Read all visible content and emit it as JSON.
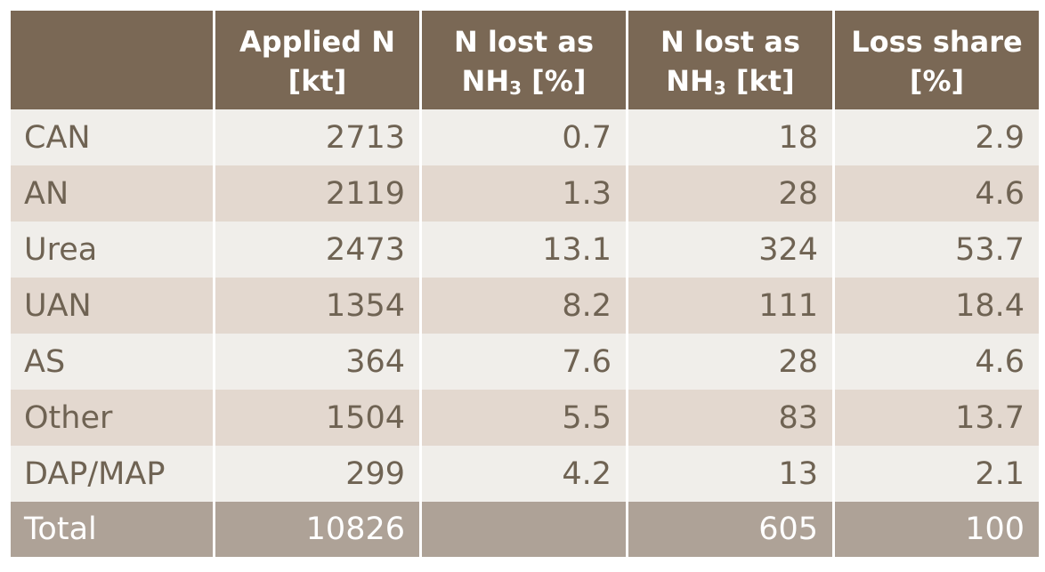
{
  "table": {
    "headers": [
      {
        "line1": "",
        "line2": "",
        "sub": "",
        "line2_tail": ""
      },
      {
        "line1": "Applied N",
        "line2": "[kt]",
        "sub": "",
        "line2_tail": ""
      },
      {
        "line1": "N lost as",
        "line2": "NH",
        "sub": "3",
        "line2_tail": " [%]"
      },
      {
        "line1": "N lost as",
        "line2": "NH",
        "sub": "3",
        "line2_tail": " [kt]"
      },
      {
        "line1": "Loss share",
        "line2": "[%]",
        "sub": "",
        "line2_tail": ""
      }
    ],
    "rows": [
      [
        "CAN",
        "2713",
        "0.7",
        "18",
        "2.9"
      ],
      [
        "AN",
        "2119",
        "1.3",
        "28",
        "4.6"
      ],
      [
        "Urea",
        "2473",
        "13.1",
        "324",
        "53.7"
      ],
      [
        "UAN",
        "1354",
        "8.2",
        "111",
        "18.4"
      ],
      [
        "AS",
        "364",
        "7.6",
        "28",
        "4.6"
      ],
      [
        "Other",
        "1504",
        "5.5",
        "83",
        "13.7"
      ],
      [
        "DAP/MAP",
        "299",
        "4.2",
        "13",
        "2.1"
      ]
    ],
    "total": [
      "Total",
      "10826",
      "",
      "605",
      "100"
    ]
  },
  "colors": {
    "header": "#7a6855",
    "row_light": "#f0eeea",
    "row_dark": "#e3d8cf",
    "total": "#aea297",
    "text": "#6f6353"
  }
}
